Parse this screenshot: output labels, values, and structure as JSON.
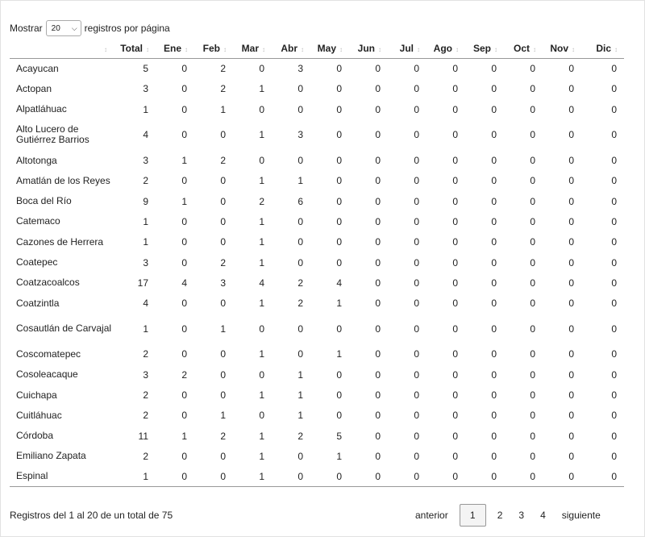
{
  "length_control": {
    "label_before": "Mostrar",
    "selected": "20",
    "label_after": "registros por página"
  },
  "columns": [
    "",
    "Total",
    "Ene",
    "Feb",
    "Mar",
    "Abr",
    "May",
    "Jun",
    "Jul",
    "Ago",
    "Sep",
    "Oct",
    "Nov",
    "Dic"
  ],
  "rows": [
    {
      "name": "Acayucan",
      "v": [
        "5",
        "0",
        "2",
        "0",
        "3",
        "0",
        "0",
        "0",
        "0",
        "0",
        "0",
        "0",
        "0"
      ]
    },
    {
      "name": "Actopan",
      "v": [
        "3",
        "0",
        "2",
        "1",
        "0",
        "0",
        "0",
        "0",
        "0",
        "0",
        "0",
        "0",
        "0"
      ]
    },
    {
      "name": "Alpatláhuac",
      "v": [
        "1",
        "0",
        "1",
        "0",
        "0",
        "0",
        "0",
        "0",
        "0",
        "0",
        "0",
        "0",
        "0"
      ]
    },
    {
      "name": "Alto Lucero de Gutiérrez Barrios",
      "v": [
        "4",
        "0",
        "0",
        "1",
        "3",
        "0",
        "0",
        "0",
        "0",
        "0",
        "0",
        "0",
        "0"
      ]
    },
    {
      "name": "Altotonga",
      "v": [
        "3",
        "1",
        "2",
        "0",
        "0",
        "0",
        "0",
        "0",
        "0",
        "0",
        "0",
        "0",
        "0"
      ]
    },
    {
      "name": "Amatlán de los Reyes",
      "v": [
        "2",
        "0",
        "0",
        "1",
        "1",
        "0",
        "0",
        "0",
        "0",
        "0",
        "0",
        "0",
        "0"
      ]
    },
    {
      "name": "Boca del Río",
      "v": [
        "9",
        "1",
        "0",
        "2",
        "6",
        "0",
        "0",
        "0",
        "0",
        "0",
        "0",
        "0",
        "0"
      ]
    },
    {
      "name": "Catemaco",
      "v": [
        "1",
        "0",
        "0",
        "1",
        "0",
        "0",
        "0",
        "0",
        "0",
        "0",
        "0",
        "0",
        "0"
      ]
    },
    {
      "name": "Cazones de Herrera",
      "v": [
        "1",
        "0",
        "0",
        "1",
        "0",
        "0",
        "0",
        "0",
        "0",
        "0",
        "0",
        "0",
        "0"
      ]
    },
    {
      "name": "Coatepec",
      "v": [
        "3",
        "0",
        "2",
        "1",
        "0",
        "0",
        "0",
        "0",
        "0",
        "0",
        "0",
        "0",
        "0"
      ]
    },
    {
      "name": "Coatzacoalcos",
      "v": [
        "17",
        "4",
        "3",
        "4",
        "2",
        "4",
        "0",
        "0",
        "0",
        "0",
        "0",
        "0",
        "0"
      ]
    },
    {
      "name": "Coatzintla",
      "v": [
        "4",
        "0",
        "0",
        "1",
        "2",
        "1",
        "0",
        "0",
        "0",
        "0",
        "0",
        "0",
        "0"
      ]
    },
    {
      "name": "Cosautlán de Carvajal",
      "v": [
        "1",
        "0",
        "1",
        "0",
        "0",
        "0",
        "0",
        "0",
        "0",
        "0",
        "0",
        "0",
        "0"
      ]
    },
    {
      "name": "Coscomatepec",
      "v": [
        "2",
        "0",
        "0",
        "1",
        "0",
        "1",
        "0",
        "0",
        "0",
        "0",
        "0",
        "0",
        "0"
      ]
    },
    {
      "name": "Cosoleacaque",
      "v": [
        "3",
        "2",
        "0",
        "0",
        "1",
        "0",
        "0",
        "0",
        "0",
        "0",
        "0",
        "0",
        "0"
      ]
    },
    {
      "name": "Cuichapa",
      "v": [
        "2",
        "0",
        "0",
        "1",
        "1",
        "0",
        "0",
        "0",
        "0",
        "0",
        "0",
        "0",
        "0"
      ]
    },
    {
      "name": "Cuitláhuac",
      "v": [
        "2",
        "0",
        "1",
        "0",
        "1",
        "0",
        "0",
        "0",
        "0",
        "0",
        "0",
        "0",
        "0"
      ]
    },
    {
      "name": "Córdoba",
      "v": [
        "11",
        "1",
        "2",
        "1",
        "2",
        "5",
        "0",
        "0",
        "0",
        "0",
        "0",
        "0",
        "0"
      ]
    },
    {
      "name": "Emiliano Zapata",
      "v": [
        "2",
        "0",
        "0",
        "1",
        "0",
        "1",
        "0",
        "0",
        "0",
        "0",
        "0",
        "0",
        "0"
      ]
    },
    {
      "name": "Espinal",
      "v": [
        "1",
        "0",
        "0",
        "1",
        "0",
        "0",
        "0",
        "0",
        "0",
        "0",
        "0",
        "0",
        "0"
      ]
    }
  ],
  "footer": {
    "info": "Registros del 1 al 20 de un total de 75",
    "prev": "anterior",
    "pages": [
      "1",
      "2",
      "3",
      "4"
    ],
    "next": "siguiente"
  }
}
